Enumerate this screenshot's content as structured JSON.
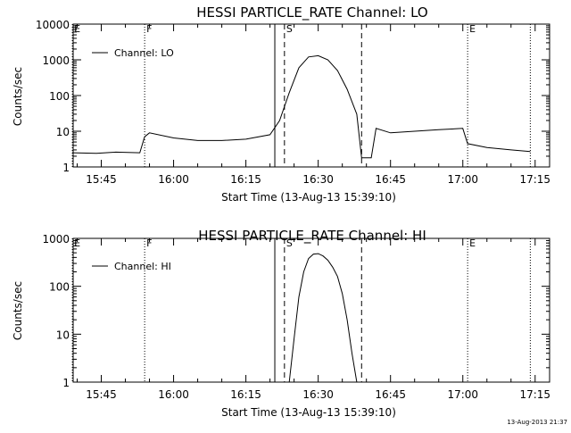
{
  "footer_timestamp": "13-Aug-2013 21:37",
  "chart_data": [
    {
      "type": "line",
      "title": "HESSI PARTICLE_RATE Channel: LO",
      "xlabel": "Start Time (13-Aug-13 15:39:10)",
      "ylabel": "Counts/sec",
      "y_scale": "log",
      "ylim": [
        1,
        10000
      ],
      "y_ticks": [
        "1",
        "10",
        "100",
        "1000",
        "10000"
      ],
      "x_ticks": [
        "15:45",
        "16:00",
        "16:15",
        "16:30",
        "16:45",
        "17:00",
        "17:15"
      ],
      "legend": {
        "label": "Channel: LO",
        "position": "top-left"
      },
      "markers": [
        {
          "label": "E",
          "time": "15:39"
        },
        {
          "label": "F",
          "time": "15:54"
        },
        {
          "label": "",
          "time": "16:21"
        },
        {
          "label": "S",
          "time": "16:23"
        },
        {
          "label": "",
          "time": "16:39"
        },
        {
          "label": "E",
          "time": "17:01"
        },
        {
          "label": "",
          "time": "17:14"
        }
      ],
      "series": [
        {
          "name": "Channel: LO",
          "x": [
            "15:39",
            "15:44",
            "15:48",
            "15:53",
            "15:54",
            "15:55",
            "16:00",
            "16:05",
            "16:10",
            "16:15",
            "16:20",
            "16:22",
            "16:24",
            "16:26",
            "16:28",
            "16:30",
            "16:32",
            "16:34",
            "16:36",
            "16:38",
            "16:39",
            "16:41",
            "16:42",
            "16:45",
            "16:50",
            "16:55",
            "17:00",
            "17:01",
            "17:05",
            "17:10",
            "17:14"
          ],
          "y": [
            2.5,
            2.4,
            2.6,
            2.5,
            7,
            9,
            6.5,
            5.5,
            5.5,
            6,
            8,
            20,
            120,
            600,
            1200,
            1300,
            1000,
            500,
            150,
            30,
            1.8,
            1.8,
            12,
            9,
            10,
            11,
            12,
            4.5,
            3.5,
            3,
            2.7
          ]
        }
      ]
    },
    {
      "type": "line",
      "title": "HESSI PARTICLE_RATE Channel: HI",
      "xlabel": "Start Time (13-Aug-13 15:39:10)",
      "ylabel": "Counts/sec",
      "y_scale": "log",
      "ylim": [
        1,
        1000
      ],
      "y_ticks": [
        "1",
        "10",
        "100",
        "1000"
      ],
      "x_ticks": [
        "15:45",
        "16:00",
        "16:15",
        "16:30",
        "16:45",
        "17:00",
        "17:15"
      ],
      "legend": {
        "label": "Channel: HI",
        "position": "top-left"
      },
      "markers": [
        {
          "label": "E",
          "time": "15:39"
        },
        {
          "label": "F",
          "time": "15:54"
        },
        {
          "label": "",
          "time": "16:21"
        },
        {
          "label": "S",
          "time": "16:23"
        },
        {
          "label": "",
          "time": "16:39"
        },
        {
          "label": "E",
          "time": "17:01"
        },
        {
          "label": "",
          "time": "17:14"
        }
      ],
      "series": [
        {
          "name": "Channel: HI",
          "x": [
            "16:24",
            "16:25",
            "16:26",
            "16:27",
            "16:28",
            "16:29",
            "16:30",
            "16:31",
            "16:32",
            "16:33",
            "16:34",
            "16:35",
            "16:36",
            "16:37",
            "16:38"
          ],
          "y": [
            1,
            8,
            60,
            200,
            380,
            470,
            480,
            430,
            350,
            250,
            160,
            70,
            20,
            4,
            1
          ]
        }
      ]
    }
  ]
}
